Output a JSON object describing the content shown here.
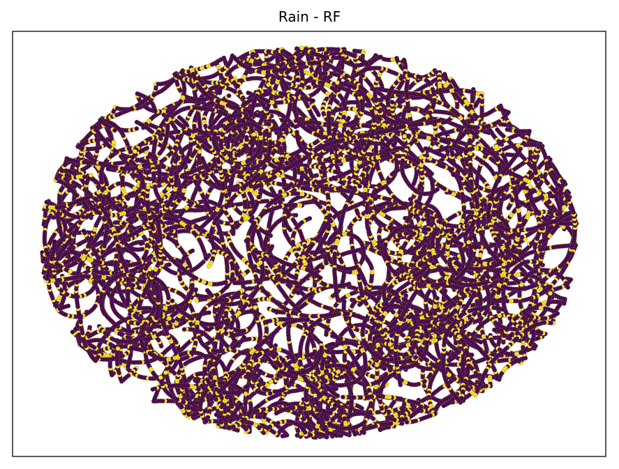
{
  "chart_data": {
    "type": "scatter",
    "title": "Rain - RF",
    "xlabel": "",
    "ylabel": "",
    "axis_ticks": "none",
    "grid": false,
    "legend": "none",
    "series_colors": {
      "class_0": "#440154",
      "class_1": "#fde725"
    },
    "marker_edge_color": "#7a6a2a",
    "description_shape": "elliptical cloud of many curved worm-like point chains",
    "estimated_points": 20000,
    "yellow_fraction": 0.18
  },
  "colors": {
    "frame": "#000000",
    "background": "#ffffff"
  }
}
